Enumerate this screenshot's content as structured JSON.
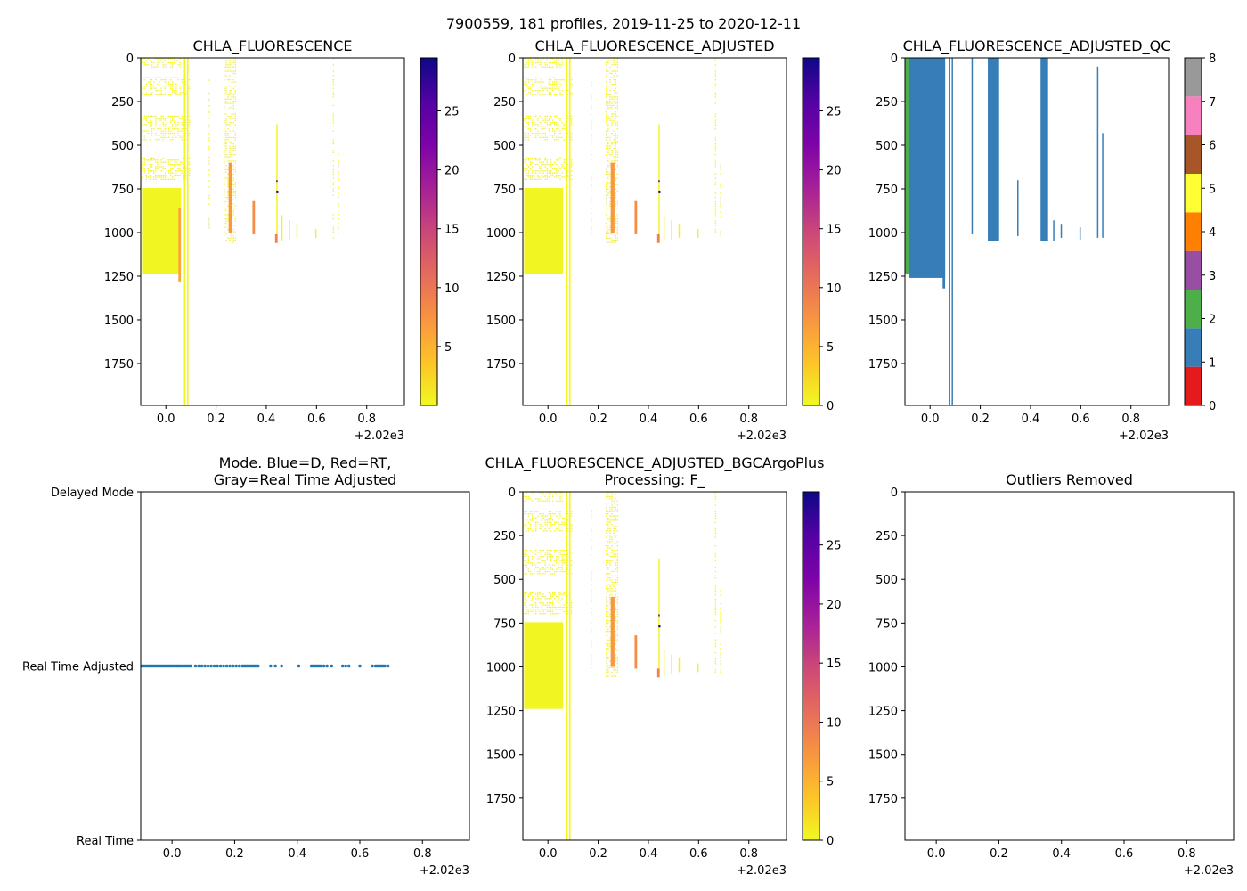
{
  "suptitle": "7900559, 181 profiles, 2019-11-25 to 2020-12-11",
  "colors": {
    "cmap_stops": [
      "#f0f921",
      "#fdc328",
      "#f89441",
      "#e56b5d",
      "#cb4778",
      "#a62098",
      "#7e03a8",
      "#5302a3",
      "#0d0887"
    ],
    "qc_colors": [
      "#e41a1c",
      "#377eb8",
      "#4daf4a",
      "#984ea3",
      "#ff7f00",
      "#ffff33",
      "#a65628",
      "#f781bf",
      "#999999"
    ],
    "blue": "#1f77b4",
    "axis": "#000000"
  },
  "chart_data": [
    {
      "id": "chla",
      "type": "heatmap",
      "title": "CHLA_FLUORESCENCE",
      "x_offset_label": "+2.02e3",
      "xlim": [
        -0.1,
        0.95
      ],
      "ylim": [
        1990,
        0
      ],
      "x_ticks": [
        "0.0",
        "0.2",
        "0.4",
        "0.6",
        "0.8"
      ],
      "y_ticks": [
        "0",
        "250",
        "500",
        "750",
        "1000",
        "1250",
        "1500",
        "1750"
      ],
      "colorbar": {
        "range": [
          0,
          29.5
        ],
        "ticks": [
          "5",
          "10",
          "15",
          "20",
          "25"
        ]
      },
      "regions": [
        {
          "x0": -0.095,
          "x1": 0.06,
          "d0": 0,
          "d1": 60,
          "v": 0.4,
          "sparse": true
        },
        {
          "x0": -0.095,
          "x1": 0.095,
          "d0": 110,
          "d1": 220,
          "v": 0.5,
          "sparse": true
        },
        {
          "x0": -0.095,
          "x1": 0.095,
          "d0": 330,
          "d1": 470,
          "v": 0.5,
          "sparse": true
        },
        {
          "x0": -0.095,
          "x1": 0.095,
          "d0": 570,
          "d1": 700,
          "v": 0.6,
          "sparse": true
        },
        {
          "x0": -0.095,
          "x1": 0.06,
          "d0": 745,
          "d1": 1240,
          "v": 0.3
        },
        {
          "x0": 0.05,
          "x1": 0.06,
          "d0": 860,
          "d1": 1280,
          "v": 6
        },
        {
          "x0": 0.072,
          "x1": 0.078,
          "d0": 0,
          "d1": 1990,
          "v": 0.3
        },
        {
          "x0": 0.084,
          "x1": 0.09,
          "d0": 0,
          "d1": 1990,
          "v": 0.3
        },
        {
          "x0": 0.17,
          "x1": 0.175,
          "d0": 100,
          "d1": 1010,
          "v": 0.5,
          "sparse": true
        },
        {
          "x0": 0.23,
          "x1": 0.275,
          "d0": 0,
          "d1": 1060,
          "v": 0.6,
          "sparse": true
        },
        {
          "x0": 0.25,
          "x1": 0.265,
          "d0": 600,
          "d1": 1000,
          "v": 7
        },
        {
          "x0": 0.345,
          "x1": 0.355,
          "d0": 820,
          "d1": 1010,
          "v": 8
        },
        {
          "x0": 0.44,
          "x1": 0.445,
          "d0": 380,
          "d1": 1060,
          "v": 0.5
        },
        {
          "x0": 0.44,
          "x1": 0.448,
          "d0": 760,
          "d1": 775,
          "v": 29
        },
        {
          "x0": 0.44,
          "x1": 0.445,
          "d0": 700,
          "d1": 710,
          "v": 28
        },
        {
          "x0": 0.435,
          "x1": 0.445,
          "d0": 1010,
          "d1": 1060,
          "v": 9
        },
        {
          "x0": 0.46,
          "x1": 0.465,
          "d0": 900,
          "d1": 1050,
          "v": 0.5
        },
        {
          "x0": 0.49,
          "x1": 0.495,
          "d0": 930,
          "d1": 1040,
          "v": 0.5
        },
        {
          "x0": 0.52,
          "x1": 0.525,
          "d0": 950,
          "d1": 1030,
          "v": 0.5
        },
        {
          "x0": 0.595,
          "x1": 0.6,
          "d0": 980,
          "d1": 1030,
          "v": 0.5
        },
        {
          "x0": 0.665,
          "x1": 0.67,
          "d0": 0,
          "d1": 1030,
          "v": 0.4,
          "sparse": true
        },
        {
          "x0": 0.685,
          "x1": 0.69,
          "d0": 550,
          "d1": 1030,
          "v": 0.4,
          "sparse": true
        }
      ]
    },
    {
      "id": "chla_adj",
      "type": "heatmap",
      "title": "CHLA_FLUORESCENCE_ADJUSTED",
      "x_offset_label": "+2.02e3",
      "xlim": [
        -0.1,
        0.95
      ],
      "ylim": [
        1990,
        0
      ],
      "x_ticks": [
        "0.0",
        "0.2",
        "0.4",
        "0.6",
        "0.8"
      ],
      "y_ticks": [
        "0",
        "250",
        "500",
        "750",
        "1000",
        "1250",
        "1500",
        "1750"
      ],
      "colorbar": {
        "range": [
          0,
          29.5
        ],
        "ticks": [
          "0",
          "5",
          "10",
          "15",
          "20",
          "25"
        ]
      },
      "regions": [
        {
          "x0": -0.095,
          "x1": 0.06,
          "d0": 0,
          "d1": 60,
          "v": 0.4,
          "sparse": true
        },
        {
          "x0": -0.095,
          "x1": 0.095,
          "d0": 110,
          "d1": 220,
          "v": 0.5,
          "sparse": true
        },
        {
          "x0": -0.095,
          "x1": 0.095,
          "d0": 330,
          "d1": 470,
          "v": 0.5,
          "sparse": true
        },
        {
          "x0": -0.095,
          "x1": 0.095,
          "d0": 570,
          "d1": 700,
          "v": 0.6,
          "sparse": true
        },
        {
          "x0": -0.095,
          "x1": 0.06,
          "d0": 745,
          "d1": 1240,
          "v": 0.3
        },
        {
          "x0": 0.072,
          "x1": 0.078,
          "d0": 0,
          "d1": 1990,
          "v": 0.3
        },
        {
          "x0": 0.084,
          "x1": 0.09,
          "d0": 0,
          "d1": 1990,
          "v": 0.3
        },
        {
          "x0": 0.17,
          "x1": 0.175,
          "d0": 100,
          "d1": 1010,
          "v": 0.5,
          "sparse": true
        },
        {
          "x0": 0.23,
          "x1": 0.275,
          "d0": 0,
          "d1": 1060,
          "v": 0.6,
          "sparse": true
        },
        {
          "x0": 0.25,
          "x1": 0.265,
          "d0": 600,
          "d1": 1000,
          "v": 7
        },
        {
          "x0": 0.345,
          "x1": 0.355,
          "d0": 820,
          "d1": 1010,
          "v": 8
        },
        {
          "x0": 0.44,
          "x1": 0.445,
          "d0": 380,
          "d1": 1060,
          "v": 0.5
        },
        {
          "x0": 0.44,
          "x1": 0.448,
          "d0": 760,
          "d1": 775,
          "v": 29
        },
        {
          "x0": 0.44,
          "x1": 0.445,
          "d0": 700,
          "d1": 710,
          "v": 28
        },
        {
          "x0": 0.435,
          "x1": 0.445,
          "d0": 1010,
          "d1": 1060,
          "v": 9
        },
        {
          "x0": 0.46,
          "x1": 0.465,
          "d0": 900,
          "d1": 1050,
          "v": 0.5
        },
        {
          "x0": 0.49,
          "x1": 0.495,
          "d0": 930,
          "d1": 1040,
          "v": 0.5
        },
        {
          "x0": 0.52,
          "x1": 0.525,
          "d0": 950,
          "d1": 1030,
          "v": 0.5
        },
        {
          "x0": 0.595,
          "x1": 0.6,
          "d0": 980,
          "d1": 1030,
          "v": 0.5
        },
        {
          "x0": 0.665,
          "x1": 0.67,
          "d0": 0,
          "d1": 1030,
          "v": 0.4,
          "sparse": true
        },
        {
          "x0": 0.685,
          "x1": 0.69,
          "d0": 550,
          "d1": 1030,
          "v": 0.4,
          "sparse": true
        }
      ]
    },
    {
      "id": "chla_adj_qc",
      "type": "heatmap",
      "title": "CHLA_FLUORESCENCE_ADJUSTED_QC",
      "x_offset_label": "+2.02e3",
      "xlim": [
        -0.1,
        0.95
      ],
      "ylim": [
        1990,
        0
      ],
      "x_ticks": [
        "0.0",
        "0.2",
        "0.4",
        "0.6",
        "0.8"
      ],
      "y_ticks": [
        "0",
        "250",
        "500",
        "750",
        "1000",
        "1250",
        "1500",
        "1750"
      ],
      "colorbar": {
        "categorical": true,
        "levels": 9,
        "ticks": [
          "0",
          "1",
          "2",
          "3",
          "4",
          "5",
          "6",
          "7",
          "8"
        ]
      },
      "columns": [
        {
          "x0": -0.1,
          "x1": -0.085,
          "d0": 0,
          "d1": 1240,
          "qc": 2
        },
        {
          "x0": -0.085,
          "x1": 0.06,
          "d0": 0,
          "d1": 1260,
          "qc": 1
        },
        {
          "x0": 0.05,
          "x1": 0.06,
          "d0": 0,
          "d1": 1320,
          "qc": 1
        },
        {
          "x0": 0.074,
          "x1": 0.078,
          "d0": 0,
          "d1": 1990,
          "qc": 1
        },
        {
          "x0": 0.086,
          "x1": 0.09,
          "d0": 0,
          "d1": 1990,
          "qc": 1
        },
        {
          "x0": 0.165,
          "x1": 0.17,
          "d0": 0,
          "d1": 1010,
          "qc": 1
        },
        {
          "x0": 0.23,
          "x1": 0.275,
          "d0": 0,
          "d1": 1050,
          "qc": 1
        },
        {
          "x0": 0.347,
          "x1": 0.352,
          "d0": 700,
          "d1": 1020,
          "qc": 1
        },
        {
          "x0": 0.44,
          "x1": 0.47,
          "d0": 0,
          "d1": 1050,
          "qc": 1
        },
        {
          "x0": 0.49,
          "x1": 0.495,
          "d0": 930,
          "d1": 1050,
          "qc": 1
        },
        {
          "x0": 0.52,
          "x1": 0.525,
          "d0": 950,
          "d1": 1030,
          "qc": 1
        },
        {
          "x0": 0.595,
          "x1": 0.6,
          "d0": 970,
          "d1": 1040,
          "qc": 1
        },
        {
          "x0": 0.665,
          "x1": 0.668,
          "d0": 50,
          "d1": 1030,
          "qc": 1
        },
        {
          "x0": 0.685,
          "x1": 0.688,
          "d0": 430,
          "d1": 1030,
          "qc": 1
        }
      ]
    },
    {
      "id": "mode",
      "type": "scatter",
      "title_lines": [
        "Mode. Blue=D, Red=RT,",
        "Gray=Real Time Adjusted"
      ],
      "x_offset_label": "+2.02e3",
      "xlim": [
        -0.1,
        0.95
      ],
      "ylim": [
        0,
        2
      ],
      "x_ticks": [
        "0.0",
        "0.2",
        "0.4",
        "0.6",
        "0.8"
      ],
      "y_tick_labels": [
        "Delayed Mode",
        "Real Time Adjusted",
        "Real Time"
      ],
      "y_tick_values": [
        2,
        1,
        0
      ],
      "series_y": 1,
      "x": [
        -0.1,
        -0.095,
        -0.09,
        -0.085,
        -0.08,
        -0.075,
        -0.07,
        -0.065,
        -0.06,
        -0.055,
        -0.05,
        -0.045,
        -0.04,
        -0.035,
        -0.03,
        -0.025,
        -0.02,
        -0.015,
        -0.01,
        -0.005,
        0.0,
        0.005,
        0.01,
        0.015,
        0.02,
        0.025,
        0.03,
        0.035,
        0.04,
        0.045,
        0.05,
        0.055,
        0.06,
        0.075,
        0.085,
        0.095,
        0.105,
        0.115,
        0.125,
        0.135,
        0.145,
        0.155,
        0.165,
        0.175,
        0.185,
        0.195,
        0.205,
        0.215,
        0.225,
        0.23,
        0.235,
        0.24,
        0.245,
        0.25,
        0.255,
        0.26,
        0.265,
        0.27,
        0.275,
        0.315,
        0.33,
        0.35,
        0.405,
        0.445,
        0.45,
        0.455,
        0.46,
        0.465,
        0.47,
        0.475,
        0.485,
        0.495,
        0.51,
        0.545,
        0.555,
        0.565,
        0.6,
        0.64,
        0.65,
        0.655,
        0.66,
        0.665,
        0.67,
        0.675,
        0.68,
        0.69
      ]
    },
    {
      "id": "chla_bgc",
      "type": "heatmap",
      "title_lines": [
        "CHLA_FLUORESCENCE_ADJUSTED_BGCArgoPlus",
        "Processing: F_"
      ],
      "x_offset_label": "+2.02e3",
      "xlim": [
        -0.1,
        0.95
      ],
      "ylim": [
        1990,
        0
      ],
      "x_ticks": [
        "0.0",
        "0.2",
        "0.4",
        "0.6",
        "0.8"
      ],
      "y_ticks": [
        "0",
        "250",
        "500",
        "750",
        "1000",
        "1250",
        "1500",
        "1750"
      ],
      "colorbar": {
        "range": [
          0,
          29.5
        ],
        "ticks": [
          "0",
          "5",
          "10",
          "15",
          "20",
          "25"
        ]
      },
      "regions": [
        {
          "x0": -0.095,
          "x1": 0.06,
          "d0": 0,
          "d1": 60,
          "v": 0.4,
          "sparse": true
        },
        {
          "x0": -0.095,
          "x1": 0.095,
          "d0": 110,
          "d1": 220,
          "v": 0.5,
          "sparse": true
        },
        {
          "x0": -0.095,
          "x1": 0.095,
          "d0": 330,
          "d1": 470,
          "v": 0.5,
          "sparse": true
        },
        {
          "x0": -0.095,
          "x1": 0.095,
          "d0": 570,
          "d1": 700,
          "v": 0.6,
          "sparse": true
        },
        {
          "x0": -0.095,
          "x1": 0.06,
          "d0": 745,
          "d1": 1240,
          "v": 0.3
        },
        {
          "x0": 0.072,
          "x1": 0.078,
          "d0": 0,
          "d1": 1990,
          "v": 0.3
        },
        {
          "x0": 0.084,
          "x1": 0.09,
          "d0": 0,
          "d1": 1990,
          "v": 0.3
        },
        {
          "x0": 0.17,
          "x1": 0.175,
          "d0": 100,
          "d1": 1010,
          "v": 0.5,
          "sparse": true
        },
        {
          "x0": 0.23,
          "x1": 0.275,
          "d0": 0,
          "d1": 1060,
          "v": 0.6,
          "sparse": true
        },
        {
          "x0": 0.25,
          "x1": 0.265,
          "d0": 600,
          "d1": 1000,
          "v": 7
        },
        {
          "x0": 0.345,
          "x1": 0.355,
          "d0": 820,
          "d1": 1010,
          "v": 8
        },
        {
          "x0": 0.44,
          "x1": 0.445,
          "d0": 380,
          "d1": 1060,
          "v": 0.5
        },
        {
          "x0": 0.44,
          "x1": 0.448,
          "d0": 760,
          "d1": 775,
          "v": 29
        },
        {
          "x0": 0.44,
          "x1": 0.445,
          "d0": 700,
          "d1": 710,
          "v": 28
        },
        {
          "x0": 0.435,
          "x1": 0.445,
          "d0": 1010,
          "d1": 1060,
          "v": 9
        },
        {
          "x0": 0.46,
          "x1": 0.465,
          "d0": 900,
          "d1": 1050,
          "v": 0.5
        },
        {
          "x0": 0.49,
          "x1": 0.495,
          "d0": 930,
          "d1": 1040,
          "v": 0.5
        },
        {
          "x0": 0.52,
          "x1": 0.525,
          "d0": 950,
          "d1": 1030,
          "v": 0.5
        },
        {
          "x0": 0.595,
          "x1": 0.6,
          "d0": 980,
          "d1": 1030,
          "v": 0.5
        },
        {
          "x0": 0.665,
          "x1": 0.67,
          "d0": 0,
          "d1": 1030,
          "v": 0.4,
          "sparse": true
        },
        {
          "x0": 0.685,
          "x1": 0.69,
          "d0": 550,
          "d1": 1030,
          "v": 0.4,
          "sparse": true
        }
      ]
    },
    {
      "id": "outliers",
      "type": "scatter",
      "title": "Outliers Removed",
      "x_offset_label": "+2.02e3",
      "xlim": [
        -0.1,
        0.95
      ],
      "ylim": [
        1990,
        0
      ],
      "x_ticks": [
        "0.0",
        "0.2",
        "0.4",
        "0.6",
        "0.8"
      ],
      "y_ticks": [
        "0",
        "250",
        "500",
        "750",
        "1000",
        "1250",
        "1500",
        "1750"
      ],
      "x": []
    }
  ]
}
